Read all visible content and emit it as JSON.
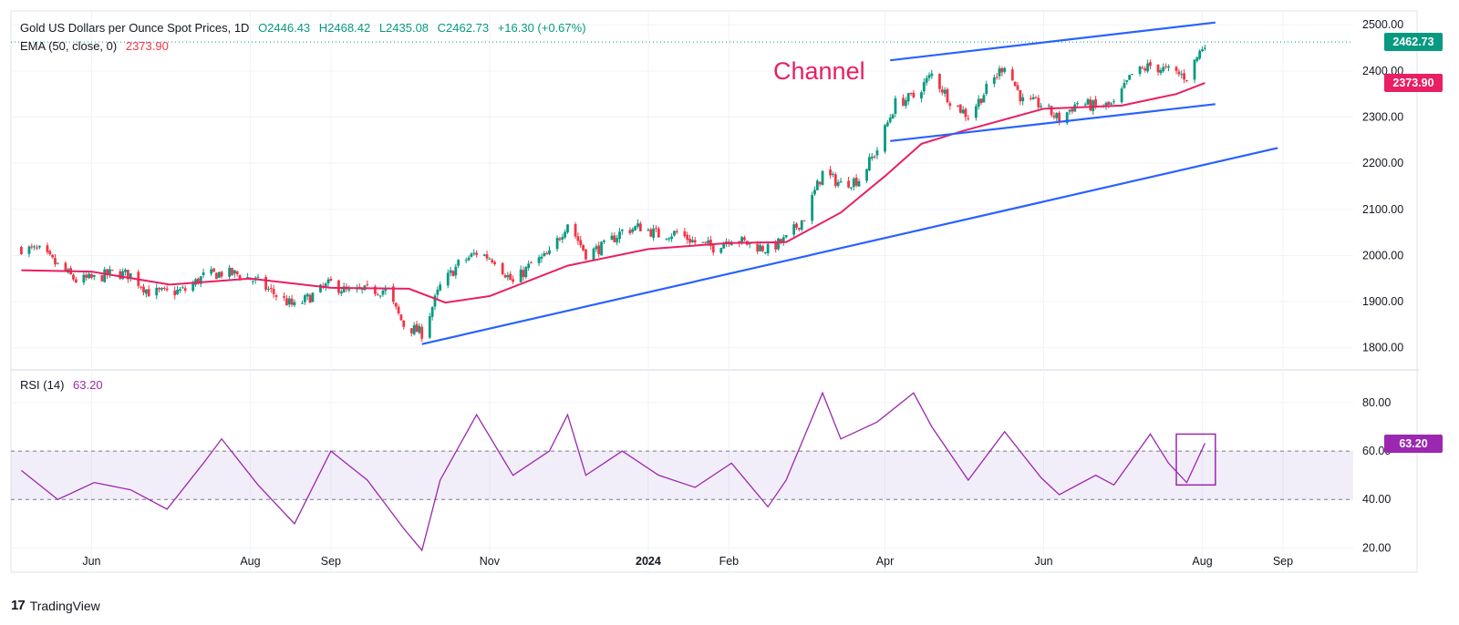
{
  "legend": {
    "symbol": "Gold US Dollars per Ounce Spot Prices, 1D",
    "open": "O2446.43",
    "high": "H2468.42",
    "low": "L2435.08",
    "close": "C2462.73",
    "change": "+16.30 (+0.67%)",
    "ema_label": "EMA (50, close, 0)",
    "ema_value": "2373.90",
    "rsi_label": "RSI (14)",
    "rsi_value": "63.20"
  },
  "annotation": {
    "channel_label": "Channel"
  },
  "tags": {
    "last_price": "2462.73",
    "ema": "2373.90",
    "rsi": "63.20"
  },
  "footer": {
    "brand": "TradingView"
  },
  "colors": {
    "up": "#089981",
    "down": "#f23645",
    "ema": "#e91e63",
    "trendline": "#2962ff",
    "rsi": "#9c27b0",
    "rsi_band": "#7e57c2"
  },
  "chart_data": [
    {
      "type": "candlestick",
      "title": "Gold US Dollars per Ounce Spot Prices, 1D",
      "ylim": [
        1760,
        2530
      ],
      "y_ticks": [
        "2500.00",
        "2400.00",
        "2300.00",
        "2200.00",
        "2100.00",
        "2000.00",
        "1900.00",
        "1800.00"
      ],
      "x_tick_labels": [
        "Jun",
        "Aug",
        "Sep",
        "Nov",
        "2024",
        "Feb",
        "Apr",
        "Jun",
        "Aug",
        "Sep"
      ],
      "close_path": [
        [
          "2023-05-05",
          2016
        ],
        [
          "2023-05-12",
          2010
        ],
        [
          "2023-05-19",
          1978
        ],
        [
          "2023-05-26",
          1946
        ],
        [
          "2023-06-02",
          1950
        ],
        [
          "2023-06-09",
          1962
        ],
        [
          "2023-06-16",
          1958
        ],
        [
          "2023-06-23",
          1921
        ],
        [
          "2023-06-30",
          1919
        ],
        [
          "2023-07-07",
          1925
        ],
        [
          "2023-07-14",
          1955
        ],
        [
          "2023-07-21",
          1962
        ],
        [
          "2023-07-28",
          1959
        ],
        [
          "2023-08-04",
          1942
        ],
        [
          "2023-08-11",
          1914
        ],
        [
          "2023-08-18",
          1889
        ],
        [
          "2023-08-25",
          1914
        ],
        [
          "2023-09-01",
          1940
        ],
        [
          "2023-09-08",
          1919
        ],
        [
          "2023-09-15",
          1924
        ],
        [
          "2023-09-22",
          1925
        ],
        [
          "2023-09-29",
          1849
        ],
        [
          "2023-10-06",
          1832
        ],
        [
          "2023-10-13",
          1932
        ],
        [
          "2023-10-20",
          1981
        ],
        [
          "2023-10-27",
          2006
        ],
        [
          "2023-11-03",
          1992
        ],
        [
          "2023-11-10",
          1940
        ],
        [
          "2023-11-17",
          1981
        ],
        [
          "2023-11-24",
          2002
        ],
        [
          "2023-12-01",
          2072
        ],
        [
          "2023-12-08",
          2004
        ],
        [
          "2023-12-15",
          2020
        ],
        [
          "2023-12-22",
          2053
        ],
        [
          "2023-12-29",
          2062
        ],
        [
          "2024-01-05",
          2045
        ],
        [
          "2024-01-12",
          2049
        ],
        [
          "2024-01-19",
          2029
        ],
        [
          "2024-01-26",
          2018
        ],
        [
          "2024-02-02",
          2039
        ],
        [
          "2024-02-09",
          2024
        ],
        [
          "2024-02-16",
          2013
        ],
        [
          "2024-02-23",
          2035
        ],
        [
          "2024-03-01",
          2083
        ],
        [
          "2024-03-08",
          2179
        ],
        [
          "2024-03-15",
          2155
        ],
        [
          "2024-03-22",
          2165
        ],
        [
          "2024-03-29",
          2230
        ],
        [
          "2024-04-05",
          2330
        ],
        [
          "2024-04-12",
          2344
        ],
        [
          "2024-04-19",
          2392
        ],
        [
          "2024-04-26",
          2337
        ],
        [
          "2024-05-03",
          2302
        ],
        [
          "2024-05-10",
          2360
        ],
        [
          "2024-05-17",
          2415
        ],
        [
          "2024-05-24",
          2334
        ],
        [
          "2024-05-31",
          2327
        ],
        [
          "2024-06-07",
          2294
        ],
        [
          "2024-06-14",
          2332
        ],
        [
          "2024-06-21",
          2322
        ],
        [
          "2024-06-28",
          2326
        ],
        [
          "2024-07-05",
          2392
        ],
        [
          "2024-07-12",
          2411
        ],
        [
          "2024-07-19",
          2400
        ],
        [
          "2024-07-26",
          2387
        ],
        [
          "2024-08-02",
          2462.73
        ]
      ],
      "ema50": [
        [
          "2023-05-05",
          1968
        ],
        [
          "2023-06-01",
          1965
        ],
        [
          "2023-07-01",
          1937
        ],
        [
          "2023-08-01",
          1950
        ],
        [
          "2023-09-01",
          1930
        ],
        [
          "2023-10-01",
          1928
        ],
        [
          "2023-10-15",
          1898
        ],
        [
          "2023-11-01",
          1912
        ],
        [
          "2023-12-01",
          1978
        ],
        [
          "2024-01-01",
          2014
        ],
        [
          "2024-02-01",
          2027
        ],
        [
          "2024-02-23",
          2029
        ],
        [
          "2024-03-15",
          2093
        ],
        [
          "2024-04-01",
          2172
        ],
        [
          "2024-04-15",
          2242
        ],
        [
          "2024-05-01",
          2270
        ],
        [
          "2024-06-01",
          2318
        ],
        [
          "2024-07-01",
          2325
        ],
        [
          "2024-07-22",
          2350
        ],
        [
          "2024-08-02",
          2373.9
        ]
      ],
      "trendlines": [
        {
          "name": "channel-upper",
          "from": [
            "2024-04-03",
            2423
          ],
          "to": [
            "2024-08-06",
            2505
          ]
        },
        {
          "name": "channel-lower",
          "from": [
            "2024-04-03",
            2248
          ],
          "to": [
            "2024-08-06",
            2328
          ]
        },
        {
          "name": "long-term-support",
          "from": [
            "2023-10-06",
            1808
          ],
          "to": [
            "2024-08-30",
            2233
          ]
        }
      ],
      "last_price": 2462.73,
      "ema_last": 2373.9
    },
    {
      "type": "line",
      "title": "RSI (14)",
      "ylim": [
        10,
        92
      ],
      "y_ticks": [
        "80.00",
        "60.00",
        "40.00",
        "20.00"
      ],
      "band": [
        40,
        60
      ],
      "points": [
        [
          "2023-05-05",
          52
        ],
        [
          "2023-05-19",
          40
        ],
        [
          "2023-06-02",
          47
        ],
        [
          "2023-06-16",
          44
        ],
        [
          "2023-06-30",
          36
        ],
        [
          "2023-07-14",
          55
        ],
        [
          "2023-07-21",
          65
        ],
        [
          "2023-08-04",
          46
        ],
        [
          "2023-08-18",
          30
        ],
        [
          "2023-09-01",
          60
        ],
        [
          "2023-09-15",
          48
        ],
        [
          "2023-09-29",
          28
        ],
        [
          "2023-10-06",
          19
        ],
        [
          "2023-10-13",
          48
        ],
        [
          "2023-10-27",
          75
        ],
        [
          "2023-11-10",
          50
        ],
        [
          "2023-11-24",
          60
        ],
        [
          "2023-12-01",
          75
        ],
        [
          "2023-12-08",
          50
        ],
        [
          "2023-12-22",
          60
        ],
        [
          "2024-01-05",
          50
        ],
        [
          "2024-01-19",
          45
        ],
        [
          "2024-02-02",
          55
        ],
        [
          "2024-02-16",
          37
        ],
        [
          "2024-02-23",
          48
        ],
        [
          "2024-03-08",
          84
        ],
        [
          "2024-03-15",
          65
        ],
        [
          "2024-03-29",
          72
        ],
        [
          "2024-04-12",
          84
        ],
        [
          "2024-04-19",
          70
        ],
        [
          "2024-05-03",
          48
        ],
        [
          "2024-05-17",
          68
        ],
        [
          "2024-05-31",
          49
        ],
        [
          "2024-06-07",
          42
        ],
        [
          "2024-06-21",
          50
        ],
        [
          "2024-06-28",
          46
        ],
        [
          "2024-07-12",
          67
        ],
        [
          "2024-07-19",
          55
        ],
        [
          "2024-07-26",
          47
        ],
        [
          "2024-08-02",
          63.2
        ]
      ],
      "last_value": 63.2,
      "highlight_box": {
        "from": [
          "2024-07-22",
          46
        ],
        "to": [
          "2024-08-06",
          67
        ]
      }
    }
  ]
}
